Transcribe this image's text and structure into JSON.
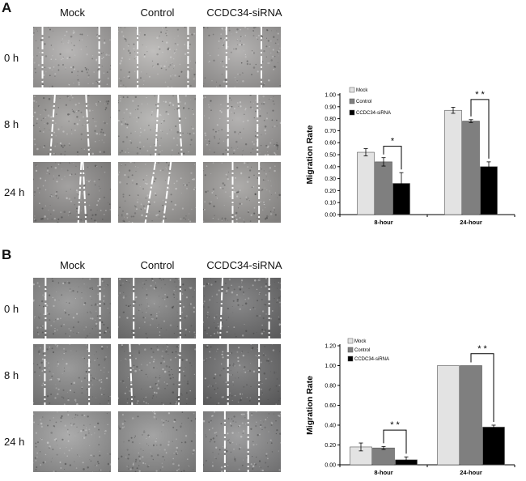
{
  "panels": [
    {
      "letter": "A",
      "columns": [
        "Mock",
        "Control",
        "CCDC34-siRNA"
      ],
      "rows": [
        "0 h",
        "8 h",
        "24 h"
      ],
      "tile_colors": [
        [
          "#a9a7a6",
          "#b2b0ae",
          "#a5a3a2"
        ],
        [
          "#9a9896",
          "#abaaa8",
          "#a3a1a0"
        ],
        [
          "#8f8d8c",
          "#a19f9d",
          "#9c9a98"
        ]
      ],
      "wound_lines": [
        [
          [
            [
              0.12,
              0.12
            ],
            [
              0.85,
              0.85
            ]
          ],
          [
            [
              0.25,
              0.25
            ],
            [
              0.9,
              0.9
            ]
          ],
          [
            [
              0.3,
              0.3
            ],
            [
              0.75,
              0.75
            ]
          ]
        ],
        [
          [
            [
              0.28,
              0.22
            ],
            [
              0.68,
              0.72
            ]
          ],
          [
            [
              0.52,
              0.48
            ],
            [
              0.77,
              0.82
            ]
          ],
          [
            [
              0.32,
              0.32
            ],
            [
              0.7,
              0.7
            ]
          ]
        ],
        [
          [
            [
              0.62,
              0.58
            ],
            [
              0.64,
              0.68
            ]
          ],
          [
            [
              0.48,
              0.35
            ],
            [
              0.68,
              0.58
            ]
          ],
          [
            [
              0.38,
              0.38
            ],
            [
              0.72,
              0.72
            ]
          ]
        ]
      ]
    },
    {
      "letter": "B",
      "columns": [
        "Mock",
        "Control",
        "CCDC34-siRNA"
      ],
      "rows": [
        "0 h",
        "8 h",
        "24 h"
      ],
      "tile_colors": [
        [
          "#898989",
          "#7c7c7c",
          "#6f6f70"
        ],
        [
          "#858585",
          "#777777",
          "#6c6c6d"
        ],
        [
          "#9a9a9a",
          "#909090",
          "#8a8a8b"
        ]
      ],
      "wound_lines": [
        [
          [
            [
              0.16,
              0.16
            ],
            [
              0.86,
              0.86
            ]
          ],
          [
            [
              0.2,
              0.2
            ],
            [
              0.8,
              0.8
            ]
          ],
          [
            [
              0.25,
              0.22
            ],
            [
              0.85,
              0.85
            ]
          ]
        ],
        [
          [
            [
              0.15,
              0.15
            ],
            [
              0.72,
              0.72
            ]
          ],
          [
            [
              0.15,
              0.18
            ],
            [
              0.8,
              0.78
            ]
          ],
          [
            [
              0.32,
              0.32
            ],
            [
              0.72,
              0.72
            ]
          ]
        ],
        [
          [],
          [],
          [
            [
              0.28,
              0.28
            ],
            [
              0.58,
              0.58
            ]
          ]
        ]
      ]
    }
  ],
  "chart_data": [
    {
      "type": "bar",
      "categories": [
        "8-hour",
        "24-hour"
      ],
      "series": [
        {
          "name": "Mock",
          "values": [
            0.52,
            0.87
          ],
          "errors": [
            0.03,
            0.025
          ],
          "color": "#e3e3e3"
        },
        {
          "name": "Control",
          "values": [
            0.44,
            0.78
          ],
          "errors": [
            0.035,
            0.012
          ],
          "color": "#7f7f7f"
        },
        {
          "name": "CCDC34-siRNA",
          "values": [
            0.26,
            0.4
          ],
          "errors": [
            0.09,
            0.04
          ],
          "color": "#000000"
        }
      ],
      "ylabel": "Migration Rate",
      "xlabel": "",
      "ylim": [
        0,
        1.0
      ],
      "yticks": [
        "0.00",
        "0.10",
        "0.20",
        "0.30",
        "0.40",
        "0.50",
        "0.60",
        "0.70",
        "0.80",
        "0.90",
        "1.00"
      ],
      "legend": "top-left",
      "significance": [
        {
          "category": 0,
          "from": 1,
          "to": 2,
          "label": "*",
          "level": 0.57
        },
        {
          "category": 1,
          "from": 1,
          "to": 2,
          "label": "* *",
          "level": 0.96
        }
      ]
    },
    {
      "type": "bar",
      "categories": [
        "8-hour",
        "24-hour"
      ],
      "series": [
        {
          "name": "Mock",
          "values": [
            0.18,
            1.0
          ],
          "errors": [
            0.04,
            0.0
          ],
          "color": "#e3e3e3"
        },
        {
          "name": "Control",
          "values": [
            0.17,
            1.0
          ],
          "errors": [
            0.015,
            0.0
          ],
          "color": "#7f7f7f"
        },
        {
          "name": "CCDC34-siRNA",
          "values": [
            0.05,
            0.38
          ],
          "errors": [
            0.03,
            0.02
          ],
          "color": "#000000"
        }
      ],
      "ylabel": "Migration Rate",
      "xlabel": "",
      "ylim": [
        0,
        1.2
      ],
      "yticks": [
        "0.00",
        "0.20",
        "0.40",
        "0.60",
        "0.80",
        "1.00",
        "1.20"
      ],
      "legend": "top-left",
      "significance": [
        {
          "category": 0,
          "from": 1,
          "to": 2,
          "label": "* *",
          "level": 0.35
        },
        {
          "category": 1,
          "from": 1,
          "to": 2,
          "label": "* *",
          "level": 1.12
        }
      ]
    }
  ]
}
